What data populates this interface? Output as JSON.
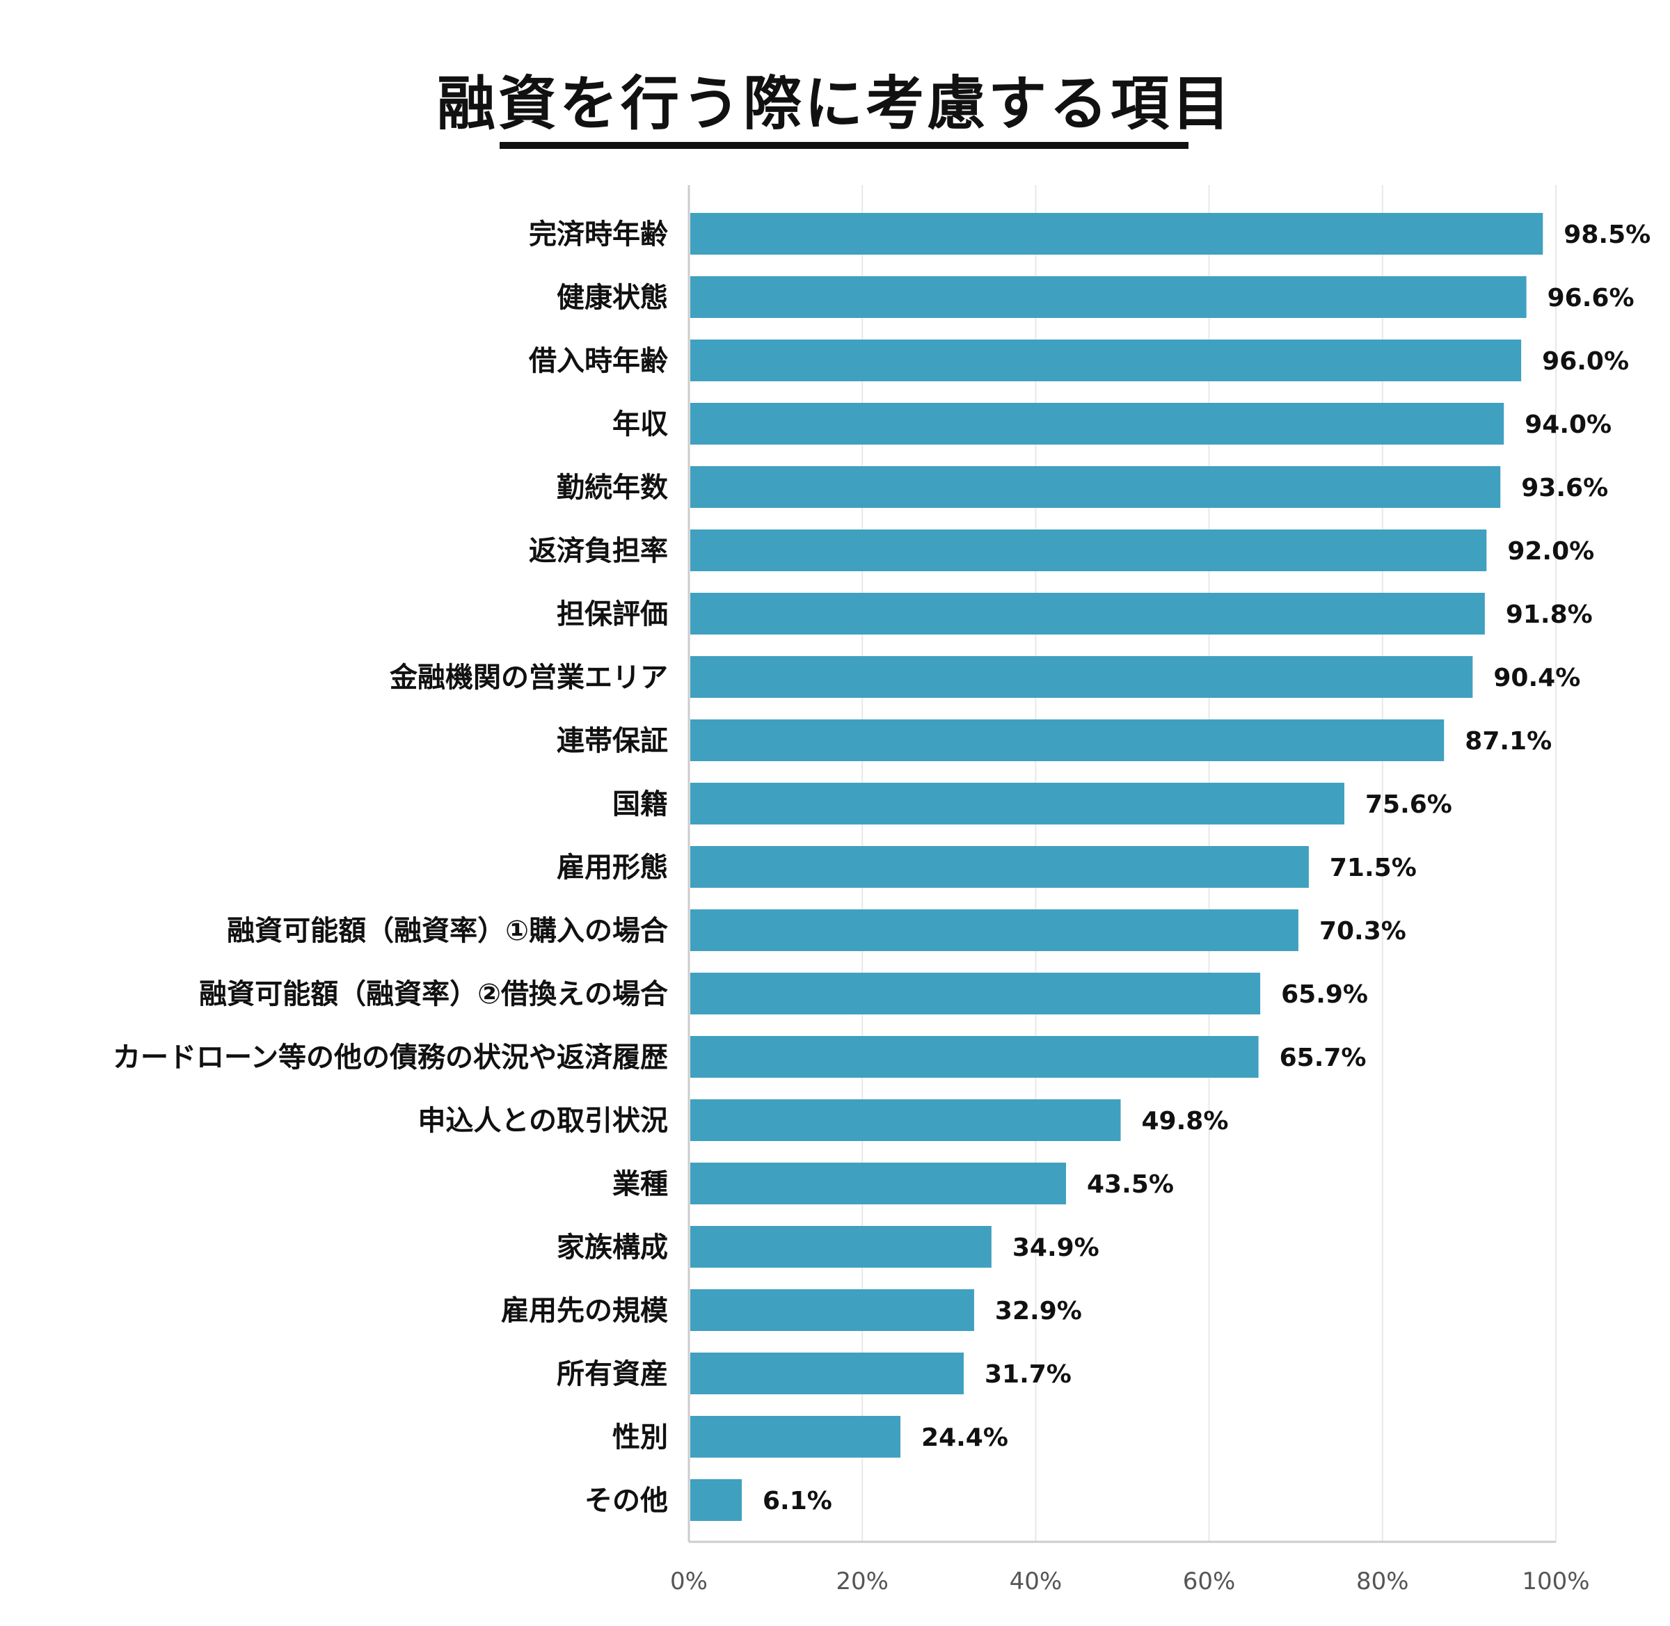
{
  "title": "融資を行う際に考慮する項目",
  "colors": {
    "bar": "#40A0C0",
    "grid": "#e8e8e8",
    "axis": "#cccccc"
  },
  "chart_data": {
    "type": "bar",
    "orientation": "horizontal",
    "title": "融資を行う際に考慮する項目",
    "categories": [
      "完済時年齢",
      "健康状態",
      "借入時年齢",
      "年収",
      "勤続年数",
      "返済負担率",
      "担保評価",
      "金融機関の営業エリア",
      "連帯保証",
      "国籍",
      "雇用形態",
      "融資可能額（融資率）①購入の場合",
      "融資可能額（融資率）②借換えの場合",
      "カードローン等の他の債務の状況や返済履歴",
      "申込人との取引状況",
      "業種",
      "家族構成",
      "雇用先の規模",
      "所有資産",
      "性別",
      "その他"
    ],
    "values": [
      98.5,
      96.6,
      96.0,
      94.0,
      93.6,
      92.0,
      91.8,
      90.4,
      87.1,
      75.6,
      71.5,
      70.3,
      65.9,
      65.7,
      49.8,
      43.5,
      34.9,
      32.9,
      31.7,
      24.4,
      6.1
    ],
    "value_labels": [
      "98.5%",
      "96.6%",
      "96.0%",
      "94.0%",
      "93.6%",
      "92.0%",
      "91.8%",
      "90.4%",
      "87.1%",
      "75.6%",
      "71.5%",
      "70.3%",
      "65.9%",
      "65.7%",
      "49.8%",
      "43.5%",
      "34.9%",
      "32.9%",
      "31.7%",
      "24.4%",
      "6.1%"
    ],
    "xlim": [
      0,
      100
    ],
    "xticks": [
      "0%",
      "20%",
      "40%",
      "60%",
      "80%",
      "100%"
    ],
    "grid": true
  }
}
